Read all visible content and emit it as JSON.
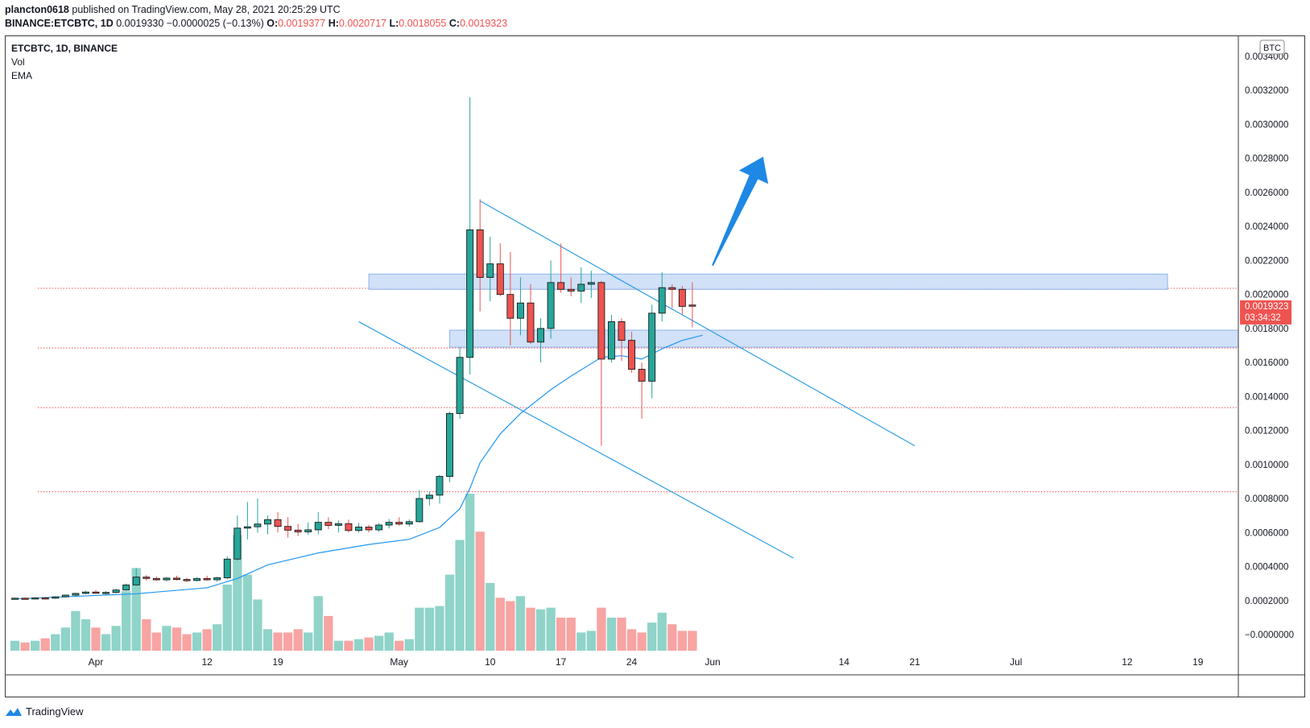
{
  "header": {
    "publisher": "plancton0618",
    "published_text": "published on TradingView.com, May 28, 2021 20:25:29 UTC",
    "symbol_line": "BINANCE:ETCBTC, 1D",
    "last": "0.0019330",
    "change": "−0.0000025 (−0.13%)",
    "o_label": "O:",
    "o": "0.0019377",
    "h_label": "H:",
    "h": "0.0020717",
    "l_label": "L:",
    "l": "0.0018055",
    "c_label": "C:",
    "c": "0.0019323"
  },
  "legend": {
    "title": "ETCBTC, 1D, BINANCE",
    "vol": "Vol",
    "ema": "EMA"
  },
  "price_badge": {
    "price": "0.0019323",
    "timer": "03:34:32"
  },
  "currency_badge": "BTC",
  "footer": {
    "brand": "TradingView"
  },
  "colors": {
    "up": "#26a69a",
    "down": "#ef5350",
    "vol_up": "#8fd3c9",
    "vol_down": "#f7a4a3",
    "ema": "#2196f3",
    "trend": "#2e9fe6",
    "zone": "#c8dcf7",
    "arrow": "#1e88e5"
  },
  "chart_data": {
    "type": "candlestick",
    "yaxis": {
      "min": 0,
      "max": 0.0034,
      "ticks": [
        "0.0034000",
        "0.0032000",
        "0.0030000",
        "0.0028000",
        "0.0026000",
        "0.0024000",
        "0.0022000",
        "0.0020000",
        "0.0018000",
        "0.0016000",
        "0.0014000",
        "0.0012000",
        "0.0010000",
        "0.0008000",
        "0.0006000",
        "0.0004000",
        "0.0002000",
        "−0.0000000"
      ]
    },
    "xaxis": {
      "start": "2021-03-23",
      "end": "2021-07-23",
      "ticks": [
        {
          "date": "2021-04-01",
          "label": "Apr"
        },
        {
          "date": "2021-04-12",
          "label": "12"
        },
        {
          "date": "2021-04-19",
          "label": "19"
        },
        {
          "date": "2021-05-01",
          "label": "May"
        },
        {
          "date": "2021-05-10",
          "label": "10"
        },
        {
          "date": "2021-05-17",
          "label": "17"
        },
        {
          "date": "2021-05-24",
          "label": "24"
        },
        {
          "date": "2021-06-01",
          "label": "Jun"
        },
        {
          "date": "2021-06-14",
          "label": "14"
        },
        {
          "date": "2021-06-21",
          "label": "21"
        },
        {
          "date": "2021-07-01",
          "label": "Jul"
        },
        {
          "date": "2021-07-12",
          "label": "12"
        },
        {
          "date": "2021-07-19",
          "label": "19"
        }
      ]
    },
    "candles": [
      {
        "d": "2021-03-24",
        "o": 0.000212,
        "h": 0.000218,
        "l": 0.000208,
        "c": 0.000214,
        "v": 0.12
      },
      {
        "d": "2021-03-25",
        "o": 0.000214,
        "h": 0.000219,
        "l": 0.000209,
        "c": 0.000212,
        "v": 0.1
      },
      {
        "d": "2021-03-26",
        "o": 0.000212,
        "h": 0.00022,
        "l": 0.000208,
        "c": 0.000216,
        "v": 0.12
      },
      {
        "d": "2021-03-27",
        "o": 0.000216,
        "h": 0.000222,
        "l": 0.00021,
        "c": 0.000214,
        "v": 0.15
      },
      {
        "d": "2021-03-28",
        "o": 0.000214,
        "h": 0.000226,
        "l": 0.00021,
        "c": 0.000222,
        "v": 0.2
      },
      {
        "d": "2021-03-29",
        "o": 0.000222,
        "h": 0.000236,
        "l": 0.000218,
        "c": 0.000232,
        "v": 0.28
      },
      {
        "d": "2021-03-30",
        "o": 0.000232,
        "h": 0.000246,
        "l": 0.000226,
        "c": 0.000242,
        "v": 0.48
      },
      {
        "d": "2021-03-31",
        "o": 0.000242,
        "h": 0.000258,
        "l": 0.000236,
        "c": 0.00025,
        "v": 0.38
      },
      {
        "d": "2021-04-01",
        "o": 0.00025,
        "h": 0.000262,
        "l": 0.00024,
        "c": 0.000244,
        "v": 0.28
      },
      {
        "d": "2021-04-02",
        "o": 0.000244,
        "h": 0.000256,
        "l": 0.000236,
        "c": 0.000248,
        "v": 0.2
      },
      {
        "d": "2021-04-03",
        "o": 0.000248,
        "h": 0.00027,
        "l": 0.000242,
        "c": 0.000262,
        "v": 0.3
      },
      {
        "d": "2021-04-04",
        "o": 0.000262,
        "h": 0.0003,
        "l": 0.000258,
        "c": 0.000292,
        "v": 0.72
      },
      {
        "d": "2021-04-05",
        "o": 0.000292,
        "h": 0.00039,
        "l": 0.000286,
        "c": 0.000338,
        "v": 1.0
      },
      {
        "d": "2021-04-06",
        "o": 0.000338,
        "h": 0.00035,
        "l": 0.000318,
        "c": 0.00033,
        "v": 0.38
      },
      {
        "d": "2021-04-07",
        "o": 0.00033,
        "h": 0.000342,
        "l": 0.000316,
        "c": 0.000322,
        "v": 0.22
      },
      {
        "d": "2021-04-08",
        "o": 0.000322,
        "h": 0.000338,
        "l": 0.000312,
        "c": 0.000332,
        "v": 0.3
      },
      {
        "d": "2021-04-09",
        "o": 0.000332,
        "h": 0.000346,
        "l": 0.000318,
        "c": 0.000324,
        "v": 0.28
      },
      {
        "d": "2021-04-10",
        "o": 0.000324,
        "h": 0.000334,
        "l": 0.000308,
        "c": 0.000318,
        "v": 0.2
      },
      {
        "d": "2021-04-11",
        "o": 0.000318,
        "h": 0.000338,
        "l": 0.000312,
        "c": 0.00033,
        "v": 0.22
      },
      {
        "d": "2021-04-12",
        "o": 0.00033,
        "h": 0.000346,
        "l": 0.000316,
        "c": 0.000322,
        "v": 0.26
      },
      {
        "d": "2021-04-13",
        "o": 0.000322,
        "h": 0.00034,
        "l": 0.000312,
        "c": 0.000334,
        "v": 0.32
      },
      {
        "d": "2021-04-14",
        "o": 0.000334,
        "h": 0.00046,
        "l": 0.000326,
        "c": 0.000444,
        "v": 0.8
      },
      {
        "d": "2021-04-15",
        "o": 0.000444,
        "h": 0.0007,
        "l": 0.000434,
        "c": 0.000626,
        "v": 1.4
      },
      {
        "d": "2021-04-16",
        "o": 0.000626,
        "h": 0.00078,
        "l": 0.00056,
        "c": 0.000634,
        "v": 0.92
      },
      {
        "d": "2021-04-17",
        "o": 0.000634,
        "h": 0.0008,
        "l": 0.0006,
        "c": 0.00065,
        "v": 0.62
      },
      {
        "d": "2021-04-18",
        "o": 0.00065,
        "h": 0.0007,
        "l": 0.00059,
        "c": 0.000676,
        "v": 0.26
      },
      {
        "d": "2021-04-19",
        "o": 0.000676,
        "h": 0.00072,
        "l": 0.0006,
        "c": 0.000636,
        "v": 0.22
      },
      {
        "d": "2021-04-20",
        "o": 0.000636,
        "h": 0.00069,
        "l": 0.00057,
        "c": 0.000614,
        "v": 0.22
      },
      {
        "d": "2021-04-21",
        "o": 0.000614,
        "h": 0.00065,
        "l": 0.00058,
        "c": 0.000604,
        "v": 0.26
      },
      {
        "d": "2021-04-22",
        "o": 0.000604,
        "h": 0.00066,
        "l": 0.000586,
        "c": 0.000616,
        "v": 0.22
      },
      {
        "d": "2021-04-23",
        "o": 0.000616,
        "h": 0.00072,
        "l": 0.00059,
        "c": 0.00066,
        "v": 0.66
      },
      {
        "d": "2021-04-24",
        "o": 0.00066,
        "h": 0.00069,
        "l": 0.00062,
        "c": 0.000642,
        "v": 0.42
      },
      {
        "d": "2021-04-25",
        "o": 0.000642,
        "h": 0.000672,
        "l": 0.0006,
        "c": 0.000652,
        "v": 0.12
      },
      {
        "d": "2021-04-26",
        "o": 0.000652,
        "h": 0.000676,
        "l": 0.0006,
        "c": 0.000612,
        "v": 0.12
      },
      {
        "d": "2021-04-27",
        "o": 0.000612,
        "h": 0.000656,
        "l": 0.0006,
        "c": 0.000632,
        "v": 0.14
      },
      {
        "d": "2021-04-28",
        "o": 0.000632,
        "h": 0.000646,
        "l": 0.0006,
        "c": 0.000616,
        "v": 0.16
      },
      {
        "d": "2021-04-29",
        "o": 0.000616,
        "h": 0.000656,
        "l": 0.000604,
        "c": 0.000644,
        "v": 0.18
      },
      {
        "d": "2021-04-30",
        "o": 0.000644,
        "h": 0.00068,
        "l": 0.000624,
        "c": 0.00066,
        "v": 0.22
      },
      {
        "d": "2021-05-01",
        "o": 0.00066,
        "h": 0.00069,
        "l": 0.00064,
        "c": 0.00065,
        "v": 0.12
      },
      {
        "d": "2021-05-02",
        "o": 0.00065,
        "h": 0.000678,
        "l": 0.000636,
        "c": 0.000664,
        "v": 0.14
      },
      {
        "d": "2021-05-03",
        "o": 0.000664,
        "h": 0.00085,
        "l": 0.000658,
        "c": 0.0008,
        "v": 0.52
      },
      {
        "d": "2021-05-04",
        "o": 0.0008,
        "h": 0.00084,
        "l": 0.00076,
        "c": 0.00082,
        "v": 0.52
      },
      {
        "d": "2021-05-05",
        "o": 0.00082,
        "h": 0.00094,
        "l": 0.00077,
        "c": 0.00093,
        "v": 0.54
      },
      {
        "d": "2021-05-06",
        "o": 0.00093,
        "h": 0.00131,
        "l": 0.000896,
        "c": 0.0013,
        "v": 0.92
      },
      {
        "d": "2021-05-07",
        "o": 0.0013,
        "h": 0.00169,
        "l": 0.00127,
        "c": 0.00163,
        "v": 1.34
      },
      {
        "d": "2021-05-08",
        "o": 0.00163,
        "h": 0.00316,
        "l": 0.00153,
        "c": 0.00238,
        "v": 1.9
      },
      {
        "d": "2021-05-09",
        "o": 0.00238,
        "h": 0.00256,
        "l": 0.0019,
        "c": 0.0021,
        "v": 1.44
      },
      {
        "d": "2021-05-10",
        "o": 0.0021,
        "h": 0.00234,
        "l": 0.00196,
        "c": 0.00218,
        "v": 0.82
      },
      {
        "d": "2021-05-11",
        "o": 0.00218,
        "h": 0.0023,
        "l": 0.00199,
        "c": 0.002,
        "v": 0.64
      },
      {
        "d": "2021-05-12",
        "o": 0.002,
        "h": 0.00225,
        "l": 0.0017,
        "c": 0.00186,
        "v": 0.6
      },
      {
        "d": "2021-05-13",
        "o": 0.00186,
        "h": 0.0021,
        "l": 0.00176,
        "c": 0.00195,
        "v": 0.66
      },
      {
        "d": "2021-05-14",
        "o": 0.00195,
        "h": 0.00206,
        "l": 0.00171,
        "c": 0.00172,
        "v": 0.52
      },
      {
        "d": "2021-05-15",
        "o": 0.00172,
        "h": 0.00186,
        "l": 0.0016,
        "c": 0.0018,
        "v": 0.5
      },
      {
        "d": "2021-05-16",
        "o": 0.0018,
        "h": 0.0022,
        "l": 0.00174,
        "c": 0.00207,
        "v": 0.52
      },
      {
        "d": "2021-05-17",
        "o": 0.00207,
        "h": 0.0023,
        "l": 0.00201,
        "c": 0.00203,
        "v": 0.4
      },
      {
        "d": "2021-05-18",
        "o": 0.00203,
        "h": 0.0021,
        "l": 0.00199,
        "c": 0.00202,
        "v": 0.4
      },
      {
        "d": "2021-05-19",
        "o": 0.00202,
        "h": 0.00216,
        "l": 0.00195,
        "c": 0.00206,
        "v": 0.22
      },
      {
        "d": "2021-05-20",
        "o": 0.00206,
        "h": 0.00214,
        "l": 0.00198,
        "c": 0.00207,
        "v": 0.24
      },
      {
        "d": "2021-05-21",
        "o": 0.00207,
        "h": 0.00208,
        "l": 0.00111,
        "c": 0.00162,
        "v": 0.52
      },
      {
        "d": "2021-05-22",
        "o": 0.00162,
        "h": 0.00188,
        "l": 0.0016,
        "c": 0.00184,
        "v": 0.4
      },
      {
        "d": "2021-05-23",
        "o": 0.00184,
        "h": 0.00186,
        "l": 0.00161,
        "c": 0.00173,
        "v": 0.4
      },
      {
        "d": "2021-05-24",
        "o": 0.00173,
        "h": 0.00178,
        "l": 0.00154,
        "c": 0.00156,
        "v": 0.26
      },
      {
        "d": "2021-05-25",
        "o": 0.00156,
        "h": 0.0016,
        "l": 0.00127,
        "c": 0.00149,
        "v": 0.22
      },
      {
        "d": "2021-05-26",
        "o": 0.00149,
        "h": 0.00194,
        "l": 0.00139,
        "c": 0.00189,
        "v": 0.34
      },
      {
        "d": "2021-05-27",
        "o": 0.00189,
        "h": 0.00213,
        "l": 0.00184,
        "c": 0.00204,
        "v": 0.46
      },
      {
        "d": "2021-05-28",
        "o": 0.00204,
        "h": 0.00206,
        "l": 0.00192,
        "c": 0.00203,
        "v": 0.32
      },
      {
        "d": "2021-05-29",
        "o": 0.00203,
        "h": 0.00205,
        "l": 0.00188,
        "c": 0.00193,
        "v": 0.24
      },
      {
        "d": "2021-05-30",
        "o": 0.001938,
        "h": 0.002072,
        "l": 0.001806,
        "c": 0.001932,
        "v": 0.24
      }
    ],
    "ema": [
      {
        "d": "2021-03-24",
        "v": 0.00021
      },
      {
        "d": "2021-04-05",
        "v": 0.00024
      },
      {
        "d": "2021-04-12",
        "v": 0.000275
      },
      {
        "d": "2021-04-15",
        "v": 0.00033
      },
      {
        "d": "2021-04-18",
        "v": 0.00041
      },
      {
        "d": "2021-04-23",
        "v": 0.00048
      },
      {
        "d": "2021-04-28",
        "v": 0.00053
      },
      {
        "d": "2021-05-02",
        "v": 0.00056
      },
      {
        "d": "2021-05-05",
        "v": 0.00063
      },
      {
        "d": "2021-05-07",
        "v": 0.00074
      },
      {
        "d": "2021-05-08",
        "v": 0.00086
      },
      {
        "d": "2021-05-09",
        "v": 0.00101
      },
      {
        "d": "2021-05-11",
        "v": 0.00118
      },
      {
        "d": "2021-05-13",
        "v": 0.0013
      },
      {
        "d": "2021-05-16",
        "v": 0.00144
      },
      {
        "d": "2021-05-18",
        "v": 0.00152
      },
      {
        "d": "2021-05-21",
        "v": 0.00163
      },
      {
        "d": "2021-05-23",
        "v": 0.00164
      },
      {
        "d": "2021-05-25",
        "v": 0.00162
      },
      {
        "d": "2021-05-27",
        "v": 0.00168
      },
      {
        "d": "2021-05-29",
        "v": 0.00173
      },
      {
        "d": "2021-05-31",
        "v": 0.00176
      }
    ],
    "horizontal_levels": [
      0.002036,
      0.001685,
      0.001335,
      0.00084
    ],
    "zones": [
      {
        "d1": "2021-04-28",
        "d2": "2021-07-16",
        "y1": 0.00203,
        "y2": 0.00212
      },
      {
        "d1": "2021-05-06",
        "d2": "2021-07-23",
        "y1": 0.00169,
        "y2": 0.00179
      }
    ],
    "trendlines": [
      {
        "d1": "2021-05-09",
        "y1": 0.00255,
        "d2": "2021-06-21",
        "y2": 0.00111
      },
      {
        "d1": "2021-04-27",
        "y1": 0.00184,
        "d2": "2021-06-09",
        "y2": 0.00045
      }
    ],
    "arrow": {
      "d1": "2021-06-01",
      "y1": 0.00217,
      "d2": "2021-06-06",
      "y2": 0.00281
    },
    "last_price": 0.0019323
  }
}
